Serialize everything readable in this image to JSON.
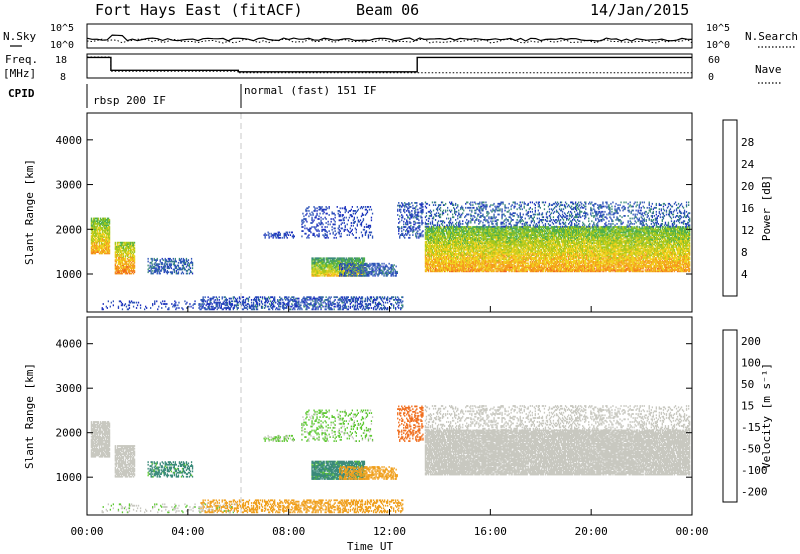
{
  "header": {
    "title": "Fort Hays East (fitACF)",
    "beam": "Beam 06",
    "date": "14/Jan/2015"
  },
  "strip_nsky": {
    "left_label": "N.Sky",
    "right_label": "N.Search",
    "tick_high": "10^5",
    "tick_low": "10^0",
    "right_tick_high": "10^5",
    "right_tick_low": "10^0"
  },
  "strip_freq": {
    "left_label_1": "Freq.",
    "left_label_2": "[MHz]",
    "right_label": "Nave",
    "left_ticks": [
      "18",
      "8"
    ],
    "right_ticks": [
      "60",
      "0"
    ],
    "freq_segments": [
      {
        "start": 0.0,
        "end": 0.95,
        "value": 17.8
      },
      {
        "start": 0.95,
        "end": 6.0,
        "value": 10.6
      },
      {
        "start": 6.0,
        "end": 13.1,
        "value": 9.8
      },
      {
        "start": 13.1,
        "end": 24.0,
        "value": 17.8
      }
    ],
    "nave_segments": [
      {
        "start": 0.0,
        "end": 0.95,
        "value": 60
      },
      {
        "start": 0.95,
        "end": 6.0,
        "value": 15
      },
      {
        "start": 6.0,
        "end": 13.1,
        "value": 10
      },
      {
        "start": 13.1,
        "end": 24.0,
        "value": 10
      }
    ]
  },
  "cpid": {
    "label": "CPID",
    "segments": [
      {
        "start": 0.0,
        "label": "rbsp 200 IF"
      },
      {
        "start": 6.0,
        "label": "normal (fast) 151 IF"
      }
    ]
  },
  "axes": {
    "x_ticks": [
      "00:00",
      "04:00",
      "08:00",
      "12:00",
      "16:00",
      "20:00",
      "00:00"
    ],
    "xlabel": "Time UT",
    "ylabel": "Slant Range [km]",
    "y_ticks": [
      "1000",
      "2000",
      "3000",
      "4000"
    ],
    "y_tick_values": [
      1000,
      2000,
      3000,
      4000
    ],
    "ylim": [
      150,
      4600
    ],
    "xlim": [
      0,
      24
    ]
  },
  "chart_data": [
    {
      "type": "heatmap",
      "name": "power",
      "colorbar_label": "Power [dB]",
      "colorbar_ticks": [
        "4",
        "8",
        "12",
        "16",
        "20",
        "24",
        "28"
      ],
      "colorbar_tick_values": [
        4,
        8,
        12,
        16,
        20,
        24,
        28
      ],
      "range": [
        0,
        32
      ],
      "colors": [
        "#1a2dbf",
        "#2f55b8",
        "#3a8a7a",
        "#4fb04a",
        "#a6c81e",
        "#f0d21e",
        "#f59a1e",
        "#f0641e",
        "#e81e1e"
      ]
    },
    {
      "type": "heatmap",
      "name": "velocity",
      "colorbar_label": "Velocity [m s⁻¹]",
      "colorbar_ticks": [
        "200",
        "100",
        "50",
        "15",
        "-15",
        "-50",
        "-100",
        "-200"
      ],
      "colors": [
        "#1a2dbf",
        "#2f55b8",
        "#3a8a7a",
        "#5ec832",
        "#c8c8c0",
        "#f0a01e",
        "#f06e1e",
        "#e81e1e"
      ]
    }
  ],
  "echo_regions": [
    {
      "t0": 0.15,
      "t1": 0.9,
      "r0": 1450,
      "r1": 2250,
      "p": 16,
      "v": -5,
      "density": 0.85
    },
    {
      "t0": 1.1,
      "t1": 1.9,
      "r0": 1000,
      "r1": 1700,
      "p": 18,
      "v": -5,
      "density": 0.8
    },
    {
      "t0": 2.4,
      "t1": 4.2,
      "r0": 1000,
      "r1": 1350,
      "p": 6,
      "v": 40,
      "density": 0.4
    },
    {
      "t0": 8.9,
      "t1": 11.0,
      "r0": 950,
      "r1": 1350,
      "p": 13,
      "v": 40,
      "density": 0.85
    },
    {
      "t0": 10.0,
      "t1": 12.3,
      "r0": 950,
      "r1": 1250,
      "p": 6,
      "v": -40,
      "density": 0.5
    },
    {
      "t0": 7.0,
      "t1": 8.2,
      "r0": 1800,
      "r1": 1950,
      "p": 4,
      "v": 20,
      "density": 0.35
    },
    {
      "t0": 8.5,
      "t1": 11.3,
      "r0": 1800,
      "r1": 2500,
      "p": 4,
      "v": 20,
      "density": 0.2
    },
    {
      "t0": 12.3,
      "t1": 13.3,
      "r0": 1800,
      "r1": 2600,
      "p": 5,
      "v": -60,
      "density": 0.3
    },
    {
      "t0": 4.5,
      "t1": 12.5,
      "r0": 200,
      "r1": 500,
      "p": 5,
      "v": -30,
      "density": 0.4
    },
    {
      "t0": 0.5,
      "t1": 6.0,
      "r0": 200,
      "r1": 400,
      "p": 4,
      "v": 10,
      "density": 0.15
    },
    {
      "t0": 13.4,
      "t1": 23.9,
      "r0": 1050,
      "r1": 2050,
      "p": 16,
      "v": -5,
      "density": 0.85
    },
    {
      "t0": 13.4,
      "t1": 23.9,
      "r0": 2050,
      "r1": 2600,
      "p": 6,
      "v": -5,
      "density": 0.25
    }
  ]
}
